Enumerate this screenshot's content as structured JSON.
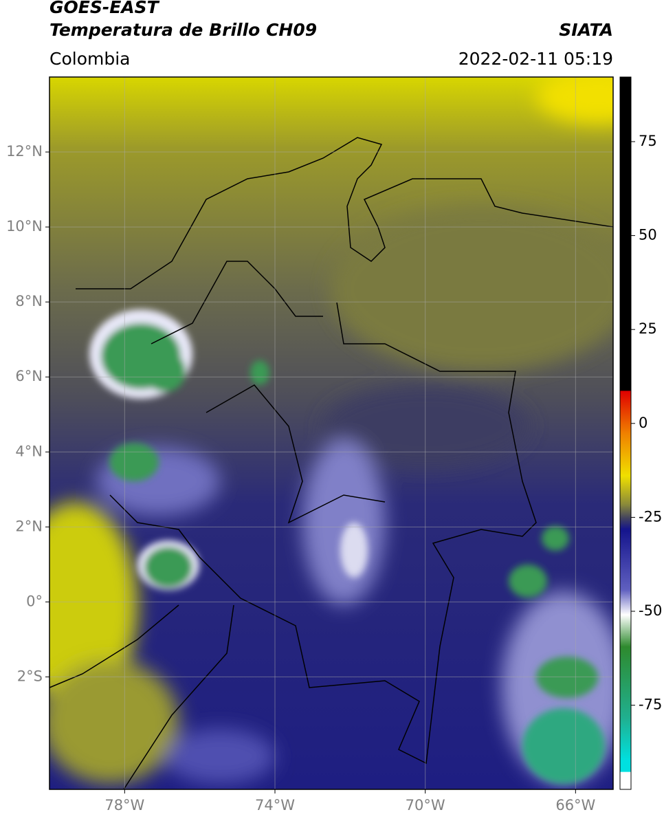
{
  "header": {
    "title_line1": "GOES-EAST",
    "title_line2": "Temperatura de Brillo CH09",
    "source": "SIATA",
    "region": "Colombia",
    "datetime": "2022-02-11 05:19"
  },
  "map": {
    "lonlim": [
      -80,
      -65
    ],
    "latlim": [
      -5,
      14
    ],
    "lon_ticks": [
      {
        "value": -78,
        "label": "78°W"
      },
      {
        "value": -74,
        "label": "74°W"
      },
      {
        "value": -70,
        "label": "70°W"
      },
      {
        "value": -66,
        "label": "66°W"
      }
    ],
    "lat_ticks": [
      {
        "value": 12,
        "label": "12°N"
      },
      {
        "value": 10,
        "label": "10°N"
      },
      {
        "value": 8,
        "label": "8°N"
      },
      {
        "value": 6,
        "label": "6°N"
      },
      {
        "value": 4,
        "label": "4°N"
      },
      {
        "value": 2,
        "label": "2°N"
      },
      {
        "value": 0,
        "label": "0°"
      },
      {
        "value": -2,
        "label": "2°S"
      }
    ]
  },
  "colorbar": {
    "lim": [
      -97.4,
      92.2
    ],
    "ticks": [
      75,
      50,
      25,
      0,
      -25,
      -50,
      -75
    ]
  }
}
